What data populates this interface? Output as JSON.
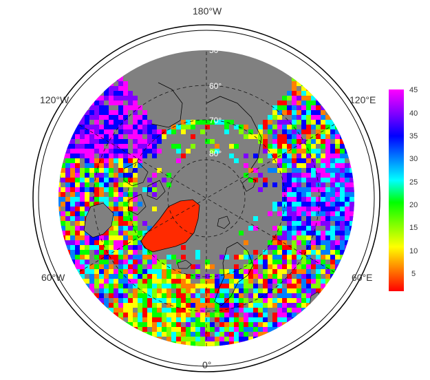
{
  "map": {
    "projection": "north-polar-stereographic",
    "background_color": "#808080",
    "ocean_color": "#808080",
    "lon_labels": {
      "top": "180°W",
      "upper_left": "120°W",
      "upper_right": "120°E",
      "lower_left": "60°W",
      "lower_right": "60°E",
      "bottom": "0°"
    },
    "lat_labels": [
      "50°",
      "60°",
      "70°",
      "80°"
    ],
    "graticule_style": "dashed"
  },
  "colorbar": {
    "ticks": [
      "45",
      "40",
      "35",
      "30",
      "25",
      "20",
      "15",
      "10",
      "5"
    ],
    "min": 1,
    "max": 45,
    "colors": [
      "#ff0000",
      "#ff8000",
      "#ffff00",
      "#80ff00",
      "#00ff00",
      "#00ffff",
      "#0080ff",
      "#0000ff",
      "#8000ff",
      "#ff00ff"
    ]
  }
}
